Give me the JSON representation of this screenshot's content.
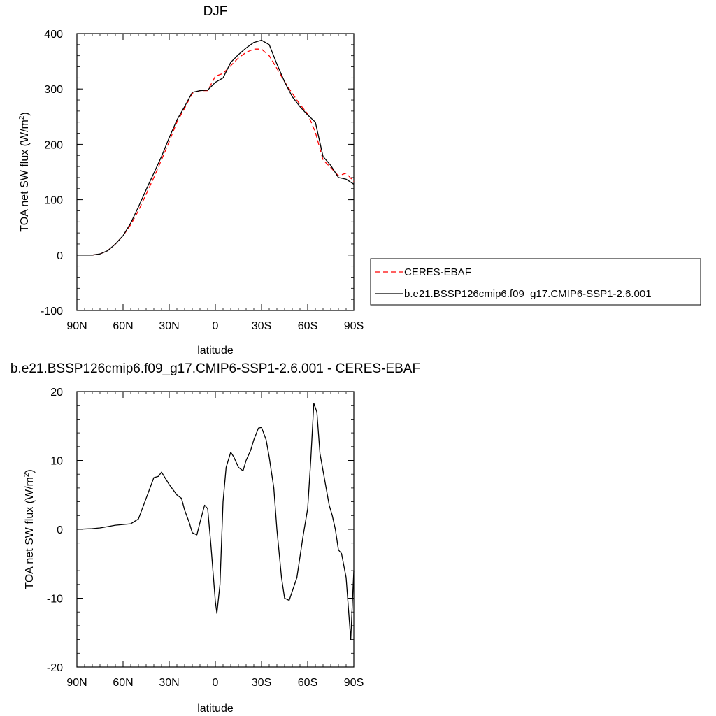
{
  "chart_data": [
    {
      "type": "line",
      "title": "DJF",
      "xlabel": "latitude",
      "ylabel": "TOA net SW flux (W/m²)",
      "ylabel_main": "TOA net SW flux (W/m",
      "ylabel_sup": "2",
      "ylabel_end": ")",
      "x_ticks": [
        {
          "value": -90,
          "label": "90N"
        },
        {
          "value": -60,
          "label": "60N"
        },
        {
          "value": -30,
          "label": "30N"
        },
        {
          "value": 0,
          "label": "0"
        },
        {
          "value": 30,
          "label": "30S"
        },
        {
          "value": 60,
          "label": "60S"
        },
        {
          "value": 90,
          "label": "90S"
        }
      ],
      "xlim": [
        -90,
        90
      ],
      "y_ticks": [
        {
          "value": -100,
          "label": "-100"
        },
        {
          "value": 0,
          "label": "0"
        },
        {
          "value": 100,
          "label": "100"
        },
        {
          "value": 200,
          "label": "200"
        },
        {
          "value": 300,
          "label": "300"
        },
        {
          "value": 400,
          "label": "400"
        }
      ],
      "ylim": [
        -100,
        400
      ],
      "grid": false,
      "legend_position": "right",
      "series": [
        {
          "name": "CERES-EBAF",
          "color": "#ff0000",
          "dash": "dashed",
          "x": [
            -90,
            -80,
            -75,
            -70,
            -65,
            -60,
            -55,
            -50,
            -45,
            -40,
            -35,
            -30,
            -25,
            -20,
            -15,
            -10,
            -5,
            0,
            5,
            10,
            15,
            20,
            25,
            30,
            35,
            40,
            45,
            50,
            55,
            60,
            65,
            70,
            75,
            80,
            85,
            90
          ],
          "y": [
            0,
            0,
            2,
            8,
            20,
            35,
            55,
            80,
            110,
            140,
            172,
            205,
            240,
            265,
            292,
            297,
            297,
            323,
            328,
            342,
            356,
            366,
            372,
            372,
            360,
            337,
            313,
            292,
            272,
            255,
            222,
            172,
            158,
            143,
            148,
            133
          ]
        },
        {
          "name": "b.e21.BSSP126cmip6.f09_g17.CMIP6-SSP1-2.6.001",
          "color": "#000000",
          "dash": "solid",
          "x": [
            -90,
            -80,
            -75,
            -70,
            -65,
            -60,
            -55,
            -50,
            -45,
            -40,
            -35,
            -30,
            -25,
            -20,
            -15,
            -10,
            -5,
            0,
            5,
            10,
            15,
            20,
            25,
            30,
            35,
            40,
            45,
            50,
            55,
            60,
            65,
            70,
            75,
            80,
            85,
            90
          ],
          "y": [
            0,
            0,
            2,
            8,
            20,
            35,
            58,
            87,
            118,
            148,
            178,
            212,
            244,
            268,
            294,
            297,
            298,
            312,
            320,
            348,
            362,
            374,
            384,
            388,
            380,
            345,
            313,
            286,
            268,
            253,
            240,
            178,
            162,
            140,
            137,
            128
          ]
        }
      ]
    },
    {
      "type": "line",
      "title": "b.e21.BSSP126cmip6.f09_g17.CMIP6-SSP1-2.6.001 - CERES-EBAF",
      "xlabel": "latitude",
      "ylabel": "TOA net SW flux (W/m²)",
      "ylabel_main": "TOA net SW flux (W/m",
      "ylabel_sup": "2",
      "ylabel_end": ")",
      "x_ticks": [
        {
          "value": -90,
          "label": "90N"
        },
        {
          "value": -60,
          "label": "60N"
        },
        {
          "value": -30,
          "label": "30N"
        },
        {
          "value": 0,
          "label": "0"
        },
        {
          "value": 30,
          "label": "30S"
        },
        {
          "value": 60,
          "label": "60S"
        },
        {
          "value": 90,
          "label": "90S"
        }
      ],
      "xlim": [
        -90,
        90
      ],
      "y_ticks": [
        {
          "value": -20,
          "label": "-20"
        },
        {
          "value": -10,
          "label": "-10"
        },
        {
          "value": 0,
          "label": "0"
        },
        {
          "value": 10,
          "label": "10"
        },
        {
          "value": 20,
          "label": "20"
        }
      ],
      "ylim": [
        -20,
        20
      ],
      "grid": false,
      "series": [
        {
          "color": "#000000",
          "dash": "solid",
          "x": [
            -90,
            -80,
            -75,
            -70,
            -65,
            -60,
            -55,
            -50,
            -45,
            -40,
            -37,
            -35,
            -30,
            -25,
            -22,
            -20,
            -17,
            -15,
            -12,
            -10,
            -7,
            -5,
            -3,
            0,
            1,
            3,
            5,
            7,
            10,
            12,
            15,
            18,
            20,
            23,
            25,
            28,
            30,
            33,
            35,
            38,
            40,
            43,
            45,
            48,
            50,
            53,
            55,
            57,
            60,
            62,
            64,
            66,
            68,
            70,
            72,
            74,
            76,
            78,
            80,
            82,
            85,
            88,
            90
          ],
          "y": [
            0,
            0.1,
            0.2,
            0.4,
            0.6,
            0.7,
            0.8,
            1.5,
            4.5,
            7.5,
            7.7,
            8.3,
            6.5,
            5,
            4.5,
            2.8,
            1,
            -0.5,
            -0.8,
            1,
            3.5,
            3,
            -2,
            -10.5,
            -12.2,
            -8,
            4,
            9,
            11.2,
            10.5,
            9,
            8.5,
            10,
            11.5,
            13,
            14.7,
            14.8,
            13,
            10.5,
            6,
            0,
            -7,
            -10,
            -10.3,
            -9,
            -7,
            -4,
            -1,
            3,
            10,
            18.3,
            17,
            11,
            8.5,
            6,
            3.5,
            2,
            0,
            -3,
            -3.5,
            -7,
            -16,
            -6
          ]
        }
      ]
    }
  ]
}
